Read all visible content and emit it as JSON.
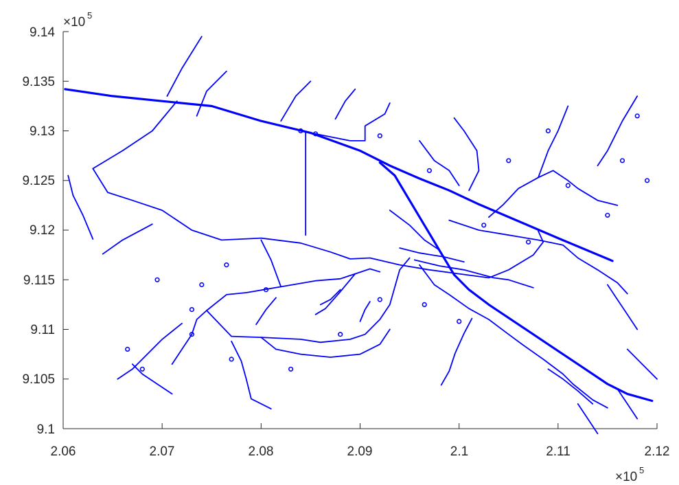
{
  "chart_data": {
    "type": "map",
    "title": "",
    "xlabel": "",
    "ylabel": "",
    "xlim": [
      206000,
      212000
    ],
    "ylim": [
      910000,
      914000
    ],
    "x_ticks": [
      "2.06",
      "2.07",
      "2.08",
      "2.09",
      "2.1",
      "2.11",
      "2.12"
    ],
    "y_ticks": [
      "9.14",
      "9.135",
      "9.13",
      "9.125",
      "9.12",
      "9.115",
      "9.11",
      "9.105",
      "9.1"
    ],
    "x_exponent": {
      "base": "×10",
      "power": "5"
    },
    "y_exponent": {
      "base": "×10",
      "power": "5"
    },
    "line_color": "#0000ff",
    "grid": false,
    "major_roads": [
      [
        [
          206020,
          913420
        ],
        [
          206500,
          913350
        ],
        [
          207000,
          913300
        ],
        [
          207500,
          913250
        ],
        [
          208000,
          913100
        ],
        [
          208500,
          912980
        ],
        [
          209000,
          912800
        ],
        [
          209300,
          912650
        ],
        [
          209600,
          912520
        ],
        [
          209900,
          912400
        ],
        [
          210200,
          912260
        ],
        [
          210600,
          912090
        ],
        [
          211000,
          911920
        ],
        [
          211550,
          911690
        ]
      ],
      [
        [
          209200,
          912680
        ],
        [
          209350,
          912550
        ],
        [
          209500,
          912300
        ],
        [
          209650,
          912050
        ],
        [
          209800,
          911800
        ],
        [
          209950,
          911550
        ],
        [
          210100,
          911400
        ],
        [
          210300,
          911250
        ],
        [
          210600,
          911050
        ],
        [
          210900,
          910850
        ],
        [
          211200,
          910650
        ],
        [
          211500,
          910450
        ],
        [
          211700,
          910350
        ],
        [
          211950,
          910280
        ]
      ]
    ],
    "minor_roads": [
      [
        [
          206300,
          912620
        ],
        [
          206600,
          912800
        ],
        [
          206900,
          913000
        ],
        [
          207150,
          913300
        ]
      ],
      [
        [
          207050,
          913350
        ],
        [
          207200,
          913630
        ],
        [
          207400,
          913950
        ]
      ],
      [
        [
          206300,
          912620
        ],
        [
          206450,
          912380
        ],
        [
          206700,
          912300
        ],
        [
          207000,
          912200
        ],
        [
          207300,
          912000
        ],
        [
          207600,
          911900
        ],
        [
          208000,
          911920
        ],
        [
          208400,
          911870
        ],
        [
          208700,
          911780
        ],
        [
          208900,
          911710
        ],
        [
          209100,
          911720
        ],
        [
          209400,
          911650
        ],
        [
          209700,
          911600
        ],
        [
          210000,
          911560
        ],
        [
          210300,
          911520
        ],
        [
          210500,
          911600
        ],
        [
          210750,
          911750
        ],
        [
          210850,
          911880
        ],
        [
          210800,
          911990
        ]
      ],
      [
        [
          208450,
          912980
        ],
        [
          208450,
          911950
        ]
      ],
      [
        [
          208500,
          912980
        ],
        [
          208650,
          912950
        ],
        [
          208900,
          912900
        ],
        [
          209050,
          912900
        ],
        [
          209050,
          913050
        ],
        [
          209250,
          913170
        ],
        [
          209300,
          913280
        ]
      ],
      [
        [
          207450,
          911190
        ],
        [
          207650,
          911350
        ],
        [
          207850,
          911370
        ],
        [
          208200,
          911430
        ],
        [
          208550,
          911490
        ],
        [
          208800,
          911510
        ],
        [
          208950,
          911560
        ],
        [
          209100,
          911610
        ],
        [
          209200,
          911580
        ]
      ],
      [
        [
          207450,
          911190
        ],
        [
          207350,
          911100
        ],
        [
          207300,
          910950
        ],
        [
          207200,
          910800
        ],
        [
          207100,
          910650
        ]
      ],
      [
        [
          207450,
          911190
        ],
        [
          207700,
          910930
        ],
        [
          208000,
          910920
        ],
        [
          208400,
          910900
        ],
        [
          208600,
          910870
        ],
        [
          208900,
          910900
        ],
        [
          209050,
          910950
        ],
        [
          209200,
          911100
        ],
        [
          209300,
          911250
        ],
        [
          209400,
          911600
        ],
        [
          209500,
          911720
        ]
      ],
      [
        [
          208950,
          911560
        ],
        [
          208800,
          911380
        ],
        [
          208650,
          911210
        ],
        [
          208550,
          911150
        ]
      ],
      [
        [
          209550,
          911700
        ],
        [
          209800,
          911640
        ],
        [
          210050,
          911600
        ],
        [
          210350,
          911520
        ],
        [
          210500,
          911500
        ],
        [
          210750,
          911420
        ]
      ],
      [
        [
          209600,
          911650
        ],
        [
          209750,
          911450
        ],
        [
          209900,
          911350
        ],
        [
          210100,
          911210
        ],
        [
          210300,
          911100
        ],
        [
          210500,
          910950
        ],
        [
          210650,
          910840
        ],
        [
          210850,
          910700
        ],
        [
          211050,
          910550
        ],
        [
          211150,
          910450
        ],
        [
          211350,
          910290
        ],
        [
          211500,
          910210
        ]
      ],
      [
        [
          209900,
          912100
        ],
        [
          210200,
          912000
        ],
        [
          210500,
          911950
        ],
        [
          210800,
          911900
        ],
        [
          211050,
          911850
        ],
        [
          211200,
          911720
        ],
        [
          211400,
          911600
        ],
        [
          211600,
          911470
        ],
        [
          211700,
          911360
        ]
      ],
      [
        [
          209400,
          911820
        ],
        [
          209600,
          911770
        ],
        [
          209850,
          911730
        ],
        [
          210050,
          911680
        ]
      ],
      [
        [
          210130,
          911110
        ],
        [
          210050,
          910960
        ],
        [
          209960,
          910760
        ],
        [
          209900,
          910580
        ],
        [
          209820,
          910440
        ]
      ],
      [
        [
          210300,
          912130
        ],
        [
          210450,
          912260
        ],
        [
          210600,
          912420
        ],
        [
          210800,
          912530
        ],
        [
          210950,
          912600
        ],
        [
          211100,
          912500
        ],
        [
          211200,
          912420
        ],
        [
          211400,
          912300
        ],
        [
          211600,
          912250
        ]
      ],
      [
        [
          210100,
          912400
        ],
        [
          210200,
          912600
        ],
        [
          210180,
          912800
        ],
        [
          210050,
          913000
        ],
        [
          209950,
          913130
        ]
      ],
      [
        [
          209600,
          912900
        ],
        [
          209750,
          912700
        ],
        [
          209900,
          912600
        ],
        [
          210000,
          912450
        ]
      ],
      [
        [
          207350,
          913150
        ],
        [
          207450,
          913400
        ],
        [
          207650,
          913600
        ]
      ],
      [
        [
          206300,
          911910
        ],
        [
          206200,
          912150
        ],
        [
          206100,
          912350
        ],
        [
          206050,
          912550
        ]
      ],
      [
        [
          206400,
          911760
        ],
        [
          206600,
          911900
        ],
        [
          206900,
          912060
        ]
      ],
      [
        [
          206550,
          910500
        ],
        [
          206700,
          910600
        ],
        [
          206850,
          910750
        ],
        [
          207000,
          910900
        ],
        [
          207200,
          911060
        ]
      ],
      [
        [
          206700,
          910650
        ],
        [
          206800,
          910550
        ],
        [
          206950,
          910450
        ],
        [
          207100,
          910350
        ]
      ],
      [
        [
          207700,
          910880
        ],
        [
          207800,
          910680
        ],
        [
          207850,
          910500
        ],
        [
          207900,
          910300
        ],
        [
          208100,
          910200
        ]
      ],
      [
        [
          208000,
          910920
        ],
        [
          208150,
          910800
        ],
        [
          208400,
          910750
        ],
        [
          208700,
          910720
        ],
        [
          209000,
          910750
        ],
        [
          209200,
          910850
        ],
        [
          209300,
          911000
        ]
      ],
      [
        [
          208200,
          911430
        ],
        [
          208100,
          911700
        ],
        [
          208000,
          911900
        ]
      ],
      [
        [
          209300,
          912200
        ],
        [
          209500,
          912050
        ],
        [
          209650,
          911900
        ],
        [
          209800,
          911800
        ]
      ],
      [
        [
          210800,
          912530
        ],
        [
          210900,
          912800
        ],
        [
          211000,
          913000
        ],
        [
          211100,
          913250
        ]
      ],
      [
        [
          211400,
          912650
        ],
        [
          211500,
          912800
        ],
        [
          211650,
          913100
        ],
        [
          211800,
          913350
        ]
      ],
      [
        [
          211500,
          911450
        ],
        [
          211600,
          911300
        ],
        [
          211700,
          911150
        ],
        [
          211800,
          911000
        ]
      ],
      [
        [
          211700,
          910800
        ],
        [
          211850,
          910650
        ],
        [
          212000,
          910500
        ]
      ],
      [
        [
          210900,
          910600
        ],
        [
          211050,
          910500
        ],
        [
          211200,
          910380
        ],
        [
          211350,
          910250
        ]
      ],
      [
        [
          211600,
          910400
        ],
        [
          211700,
          910250
        ],
        [
          211800,
          910100
        ]
      ],
      [
        [
          211200,
          910250
        ],
        [
          211300,
          910100
        ],
        [
          211400,
          909950
        ]
      ],
      [
        [
          207950,
          911050
        ],
        [
          208050,
          911200
        ],
        [
          208150,
          911320
        ]
      ],
      [
        [
          208600,
          911250
        ],
        [
          208700,
          911300
        ],
        [
          208800,
          911400
        ]
      ],
      [
        [
          209000,
          911080
        ],
        [
          209050,
          911200
        ],
        [
          209100,
          911280
        ]
      ],
      [
        [
          208200,
          913100
        ],
        [
          208350,
          913350
        ],
        [
          208500,
          913500
        ]
      ],
      [
        [
          208750,
          913120
        ],
        [
          208850,
          913300
        ],
        [
          208950,
          913420
        ]
      ]
    ],
    "cul_de_sacs": [
      [
        208400,
        913000
      ],
      [
        208550,
        912970
      ],
      [
        209200,
        912950
      ],
      [
        209700,
        912600
      ],
      [
        210250,
        912050
      ],
      [
        210700,
        911880
      ],
      [
        207650,
        911650
      ],
      [
        207400,
        911450
      ],
      [
        206950,
        911500
      ],
      [
        207300,
        911200
      ],
      [
        208050,
        911400
      ],
      [
        208800,
        910950
      ],
      [
        209200,
        911300
      ],
      [
        209650,
        911250
      ],
      [
        210000,
        911080
      ],
      [
        210500,
        912700
      ],
      [
        210900,
        913000
      ],
      [
        211800,
        913150
      ],
      [
        211100,
        912450
      ],
      [
        211500,
        912150
      ],
      [
        206650,
        910800
      ],
      [
        206800,
        910600
      ],
      [
        207700,
        910700
      ],
      [
        207300,
        910950
      ],
      [
        211650,
        912700
      ],
      [
        211900,
        912500
      ],
      [
        208300,
        910600
      ]
    ]
  }
}
